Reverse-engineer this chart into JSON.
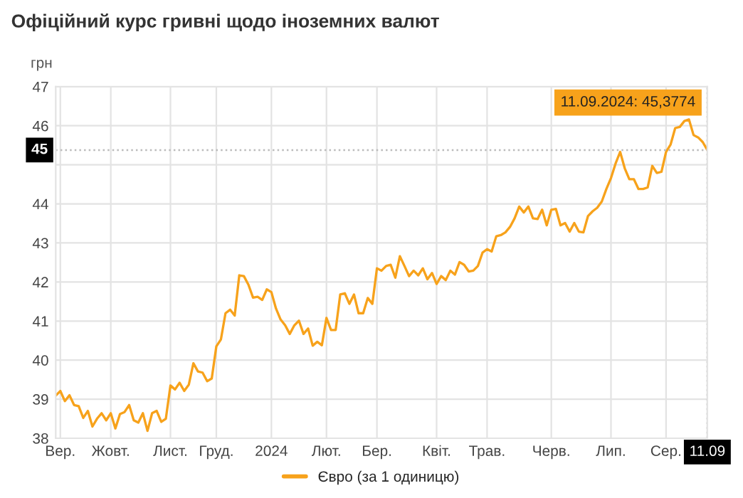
{
  "chart_data": {
    "type": "line",
    "title": "Офіційний курс гривні щодо іноземних валют",
    "ylabel": "грн",
    "categories": [
      null,
      "Вер.",
      null,
      null,
      null,
      null,
      null,
      null,
      null,
      null,
      null,
      null,
      "Жовт.",
      null,
      null,
      null,
      null,
      null,
      null,
      null,
      null,
      null,
      null,
      null,
      null,
      "Лист.",
      null,
      null,
      null,
      null,
      null,
      null,
      null,
      null,
      null,
      "Груд.",
      null,
      null,
      null,
      null,
      null,
      null,
      null,
      null,
      null,
      null,
      null,
      "2024",
      null,
      null,
      null,
      null,
      null,
      null,
      null,
      null,
      null,
      null,
      null,
      "Лют.",
      null,
      null,
      null,
      null,
      null,
      null,
      null,
      null,
      null,
      null,
      "Бер.",
      null,
      null,
      null,
      null,
      null,
      null,
      null,
      null,
      null,
      null,
      null,
      null,
      "Квіт.",
      null,
      null,
      null,
      null,
      null,
      null,
      null,
      null,
      null,
      null,
      "Трав.",
      null,
      null,
      null,
      null,
      null,
      null,
      null,
      null,
      null,
      null,
      null,
      null,
      null,
      "Черв.",
      null,
      null,
      null,
      null,
      null,
      null,
      null,
      null,
      null,
      null,
      null,
      null,
      "Лип.",
      null,
      null,
      null,
      null,
      null,
      null,
      null,
      null,
      null,
      null,
      null,
      "Сер.",
      null,
      null,
      null,
      null,
      null,
      null,
      null,
      null,
      "11.09"
    ],
    "ylim": [
      38,
      47
    ],
    "yticks": [
      38,
      39,
      40,
      41,
      42,
      43,
      44,
      {
        "value": 45,
        "label": null
      },
      46,
      47
    ],
    "grid": true,
    "legend": "bottom",
    "marker": "none",
    "line_style": "solid",
    "ref_lines": [
      {
        "axis": "y",
        "value": 45.3774,
        "label": "45",
        "color": "#bbbbbb",
        "line_style": "dotted"
      },
      {
        "axis": "x",
        "value": "11.09",
        "color": "#bbbbbb",
        "line_style": "dotted"
      }
    ],
    "annotations": [
      {
        "text": "11.09.2024: 45,3774",
        "x": "11.09",
        "y": 45.3774
      }
    ],
    "series": [
      {
        "name": "Євро (за 1 одиницю)",
        "color": "#f7a21b",
        "values": [
          39.09,
          39.21,
          38.95,
          39.1,
          38.85,
          38.82,
          38.52,
          38.7,
          38.3,
          38.5,
          38.64,
          38.46,
          38.64,
          38.25,
          38.62,
          38.67,
          38.85,
          38.46,
          38.4,
          38.64,
          38.19,
          38.64,
          38.7,
          38.42,
          38.5,
          39.35,
          39.25,
          39.42,
          39.21,
          39.37,
          39.92,
          39.71,
          39.68,
          39.46,
          39.53,
          40.35,
          40.53,
          41.2,
          41.29,
          41.14,
          42.17,
          42.15,
          41.93,
          41.6,
          41.62,
          41.54,
          41.81,
          41.74,
          41.32,
          41.04,
          40.89,
          40.67,
          40.89,
          41.01,
          40.67,
          40.81,
          40.37,
          40.47,
          40.38,
          41.08,
          40.77,
          40.77,
          41.68,
          41.71,
          41.44,
          41.68,
          41.2,
          41.2,
          41.59,
          41.44,
          42.35,
          42.29,
          42.41,
          42.44,
          42.11,
          42.66,
          42.41,
          42.15,
          42.29,
          42.17,
          42.35,
          42.07,
          42.23,
          41.95,
          42.15,
          42.05,
          42.29,
          42.19,
          42.51,
          42.44,
          42.27,
          42.29,
          42.41,
          42.75,
          42.84,
          42.78,
          43.17,
          43.2,
          43.27,
          43.41,
          43.63,
          43.93,
          43.78,
          43.93,
          43.63,
          43.61,
          43.85,
          43.45,
          43.85,
          43.87,
          43.45,
          43.51,
          43.29,
          43.51,
          43.29,
          43.27,
          43.69,
          43.81,
          43.9,
          44.06,
          44.38,
          44.66,
          45.03,
          45.33,
          44.91,
          44.63,
          44.63,
          44.38,
          44.38,
          44.42,
          44.97,
          44.79,
          44.82,
          45.33,
          45.52,
          45.94,
          45.97,
          46.12,
          46.16,
          45.76,
          45.7,
          45.58,
          45.3774
        ]
      }
    ]
  }
}
